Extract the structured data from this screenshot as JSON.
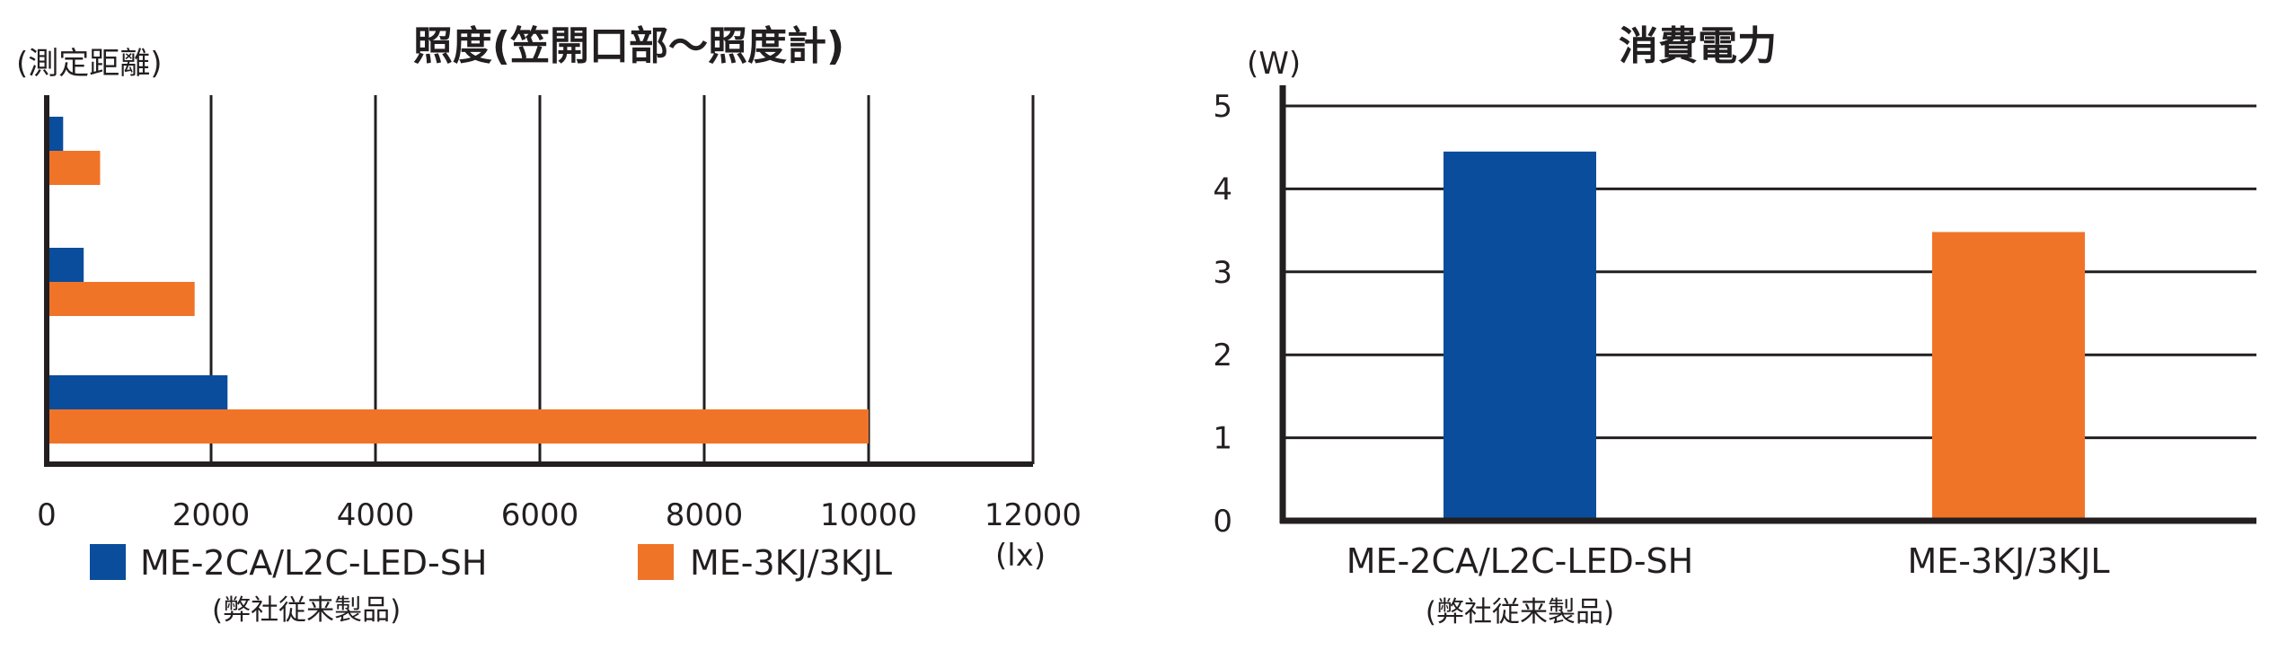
{
  "chart_data": [
    {
      "type": "bar",
      "orientation": "horizontal",
      "title": "照度(笠開口部～照度計)",
      "ylabel": "(測定距離)",
      "xlabel": "",
      "x_unit": "(lx)",
      "xlim": [
        0,
        12000
      ],
      "xticks": [
        "0",
        "2000",
        "4000",
        "6000",
        "8000",
        "10000",
        "12000"
      ],
      "grid": true,
      "legend_position": "bottom",
      "categories": [
        "",
        "",
        ""
      ],
      "series": [
        {
          "name": "ME-2CA/L2C-LED-SH",
          "note": "(弊社従来製品)",
          "color": "#0a4d9c",
          "values": [
            200,
            450,
            2200
          ]
        },
        {
          "name": "ME-3KJ/3KJL",
          "color": "#f07428",
          "values": [
            650,
            1800,
            10000
          ]
        }
      ]
    },
    {
      "type": "bar",
      "orientation": "vertical",
      "title": "消費電力",
      "ylabel": "(W)",
      "xlabel": "",
      "ylim": [
        0,
        5
      ],
      "yticks": [
        "0",
        "1",
        "2",
        "3",
        "4",
        "5"
      ],
      "grid": true,
      "categories": [
        "ME-2CA/L2C-LED-SH",
        "ME-3KJ/3KJL"
      ],
      "category_notes": [
        "(弊社従来製品)",
        ""
      ],
      "values": [
        4.45,
        3.48
      ],
      "colors": [
        "#0a4d9c",
        "#f07428"
      ]
    }
  ]
}
